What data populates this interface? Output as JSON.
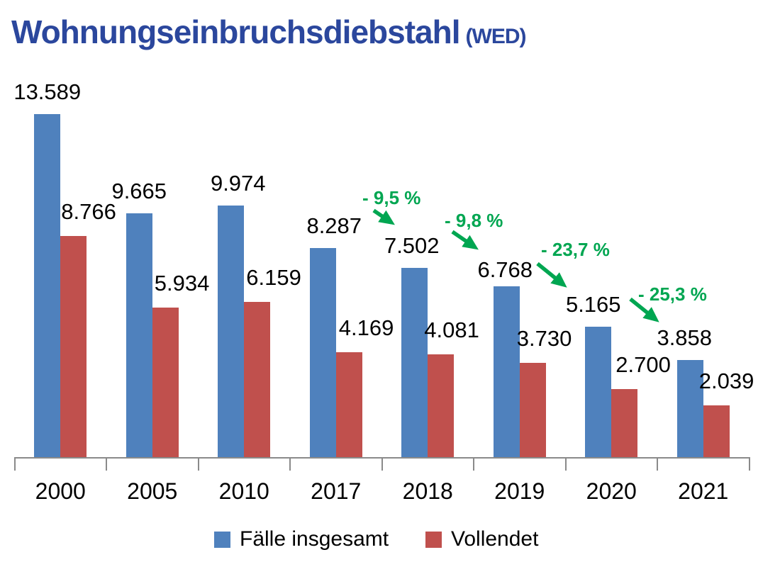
{
  "title": {
    "main": "Wohnungseinbruchsdiebstahl",
    "suffix": "(WED)"
  },
  "colors": {
    "title": "#2b479d",
    "series_total": "#4f81bd",
    "series_completed": "#c0504d",
    "annotation_green": "#00a651",
    "axis_gray": "#8a8a8a",
    "label_black": "#000000"
  },
  "chart_data": {
    "type": "bar",
    "title": "Wohnungseinbruchsdiebstahl (WED)",
    "categories": [
      "2000",
      "2005",
      "2010",
      "2017",
      "2018",
      "2019",
      "2020",
      "2021"
    ],
    "series": [
      {
        "name": "Fälle insgesamt",
        "color": "#4f81bd",
        "values": [
          13589,
          9665,
          9974,
          8287,
          7502,
          6768,
          5165,
          3858
        ],
        "labels": [
          "13.589",
          "9.665",
          "9.974",
          "8.287",
          "7.502",
          "6.768",
          "5.165",
          "3.858"
        ]
      },
      {
        "name": "Vollendet",
        "color": "#c0504d",
        "values": [
          8766,
          5934,
          6159,
          4169,
          4081,
          3730,
          2700,
          2039
        ],
        "labels": [
          "8.766",
          "5.934",
          "6.159",
          "4.169",
          "4.081",
          "3.730",
          "2.700",
          "2.039"
        ]
      }
    ],
    "annotations": [
      {
        "label": "- 9,5 %",
        "from": "2017",
        "to": "2018",
        "series": "Fälle insgesamt"
      },
      {
        "label": "- 9,8 %",
        "from": "2018",
        "to": "2019",
        "series": "Fälle insgesamt"
      },
      {
        "label": "- 23,7 %",
        "from": "2019",
        "to": "2020",
        "series": "Fälle insgesamt"
      },
      {
        "label": "- 25,3 %",
        "from": "2020",
        "to": "2021",
        "series": "Fälle insgesamt"
      }
    ],
    "xlabel": "",
    "ylabel": "",
    "ylim": [
      0,
      13589
    ],
    "grid": false,
    "y_axis_shown": false,
    "legend_position": "bottom"
  },
  "legend": {
    "items": [
      {
        "label": "Fälle insgesamt",
        "color": "#4f81bd"
      },
      {
        "label": "Vollendet",
        "color": "#c0504d"
      }
    ]
  }
}
